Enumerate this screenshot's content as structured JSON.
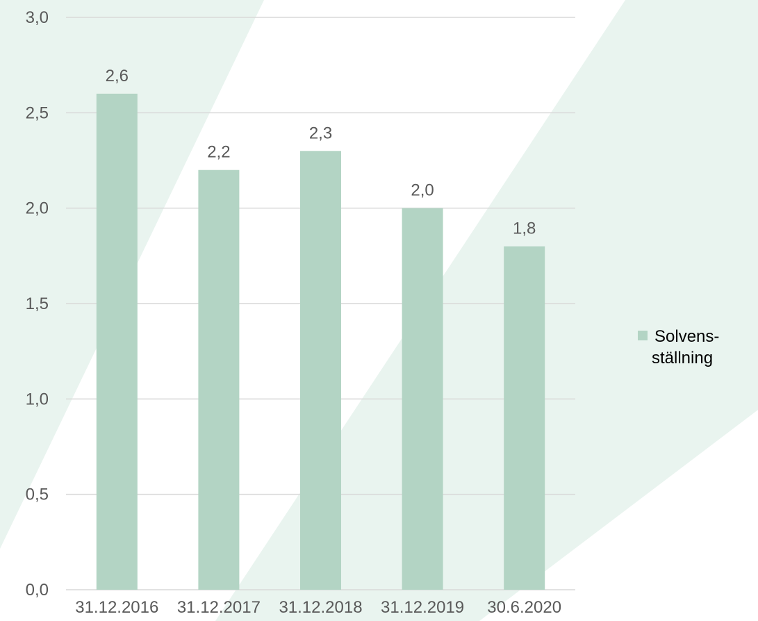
{
  "chart_data": {
    "type": "bar",
    "categories": [
      "31.12.2016",
      "31.12.2017",
      "31.12.2018",
      "31.12.2019",
      "30.6.2020"
    ],
    "series": [
      {
        "name": "Solvens-ställning",
        "name_lines": [
          "Solvens-",
          "ställning"
        ],
        "values": [
          2.6,
          2.2,
          2.3,
          2.0,
          1.8
        ],
        "labels": [
          "2,6",
          "2,2",
          "2,3",
          "2,0",
          "1,8"
        ]
      }
    ],
    "y_ticks": [
      0.0,
      0.5,
      1.0,
      1.5,
      2.0,
      2.5,
      3.0
    ],
    "y_tick_labels": [
      "0,0",
      "0,5",
      "1,0",
      "1,5",
      "2,0",
      "2,5",
      "3,0"
    ],
    "ylim": [
      0,
      3.0
    ],
    "grid": true,
    "legend_position": "right",
    "colors": {
      "bar": "#b3d4c4",
      "grid": "#d9d9d9",
      "text": "#595959",
      "legend_text": "#000000",
      "background_stripe": "#e9f4ef"
    }
  }
}
